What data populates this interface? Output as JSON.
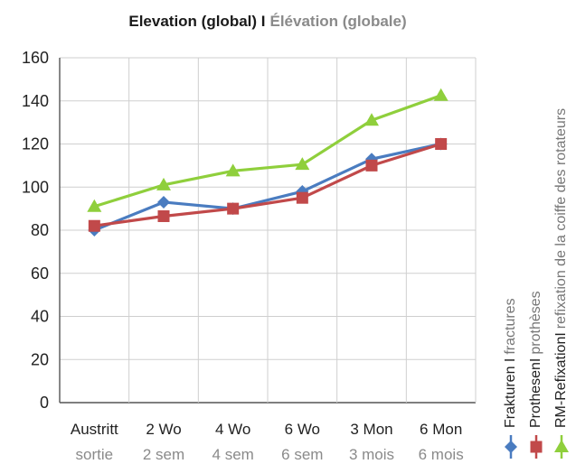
{
  "chart_data": {
    "type": "line",
    "title": "Elevation (global) I",
    "title_fr": "Élévation (globale)",
    "categories": [
      {
        "de": "Austritt",
        "fr": "sortie"
      },
      {
        "de": "2 Wo",
        "fr": "2 sem"
      },
      {
        "de": "4 Wo",
        "fr": "4 sem"
      },
      {
        "de": "6 Wo",
        "fr": "6 sem"
      },
      {
        "de": "3 Mon",
        "fr": "3 mois"
      },
      {
        "de": "6 Mon",
        "fr": "6 mois"
      }
    ],
    "ylim": [
      0,
      160
    ],
    "yticks": [
      0,
      20,
      40,
      60,
      80,
      100,
      120,
      140,
      160
    ],
    "grid": true,
    "legend_position": "right, vertical",
    "series": [
      {
        "name": "Frakturen I",
        "name_fr": "fractures",
        "marker": "diamond",
        "color": "#4a7cc0",
        "values": [
          80,
          93,
          90,
          98,
          113,
          120
        ]
      },
      {
        "name": "ProthesenI",
        "name_fr": "prothèses",
        "marker": "square",
        "color": "#c1494a",
        "values": [
          82,
          86.5,
          90,
          95,
          110,
          120
        ]
      },
      {
        "name": "RM-RefixationI",
        "name_fr": "refixation de la coiffe des rotateurs",
        "marker": "triangle",
        "color": "#8fcf3c",
        "values": [
          91,
          101,
          107.5,
          110.5,
          131,
          142.5
        ]
      }
    ]
  }
}
